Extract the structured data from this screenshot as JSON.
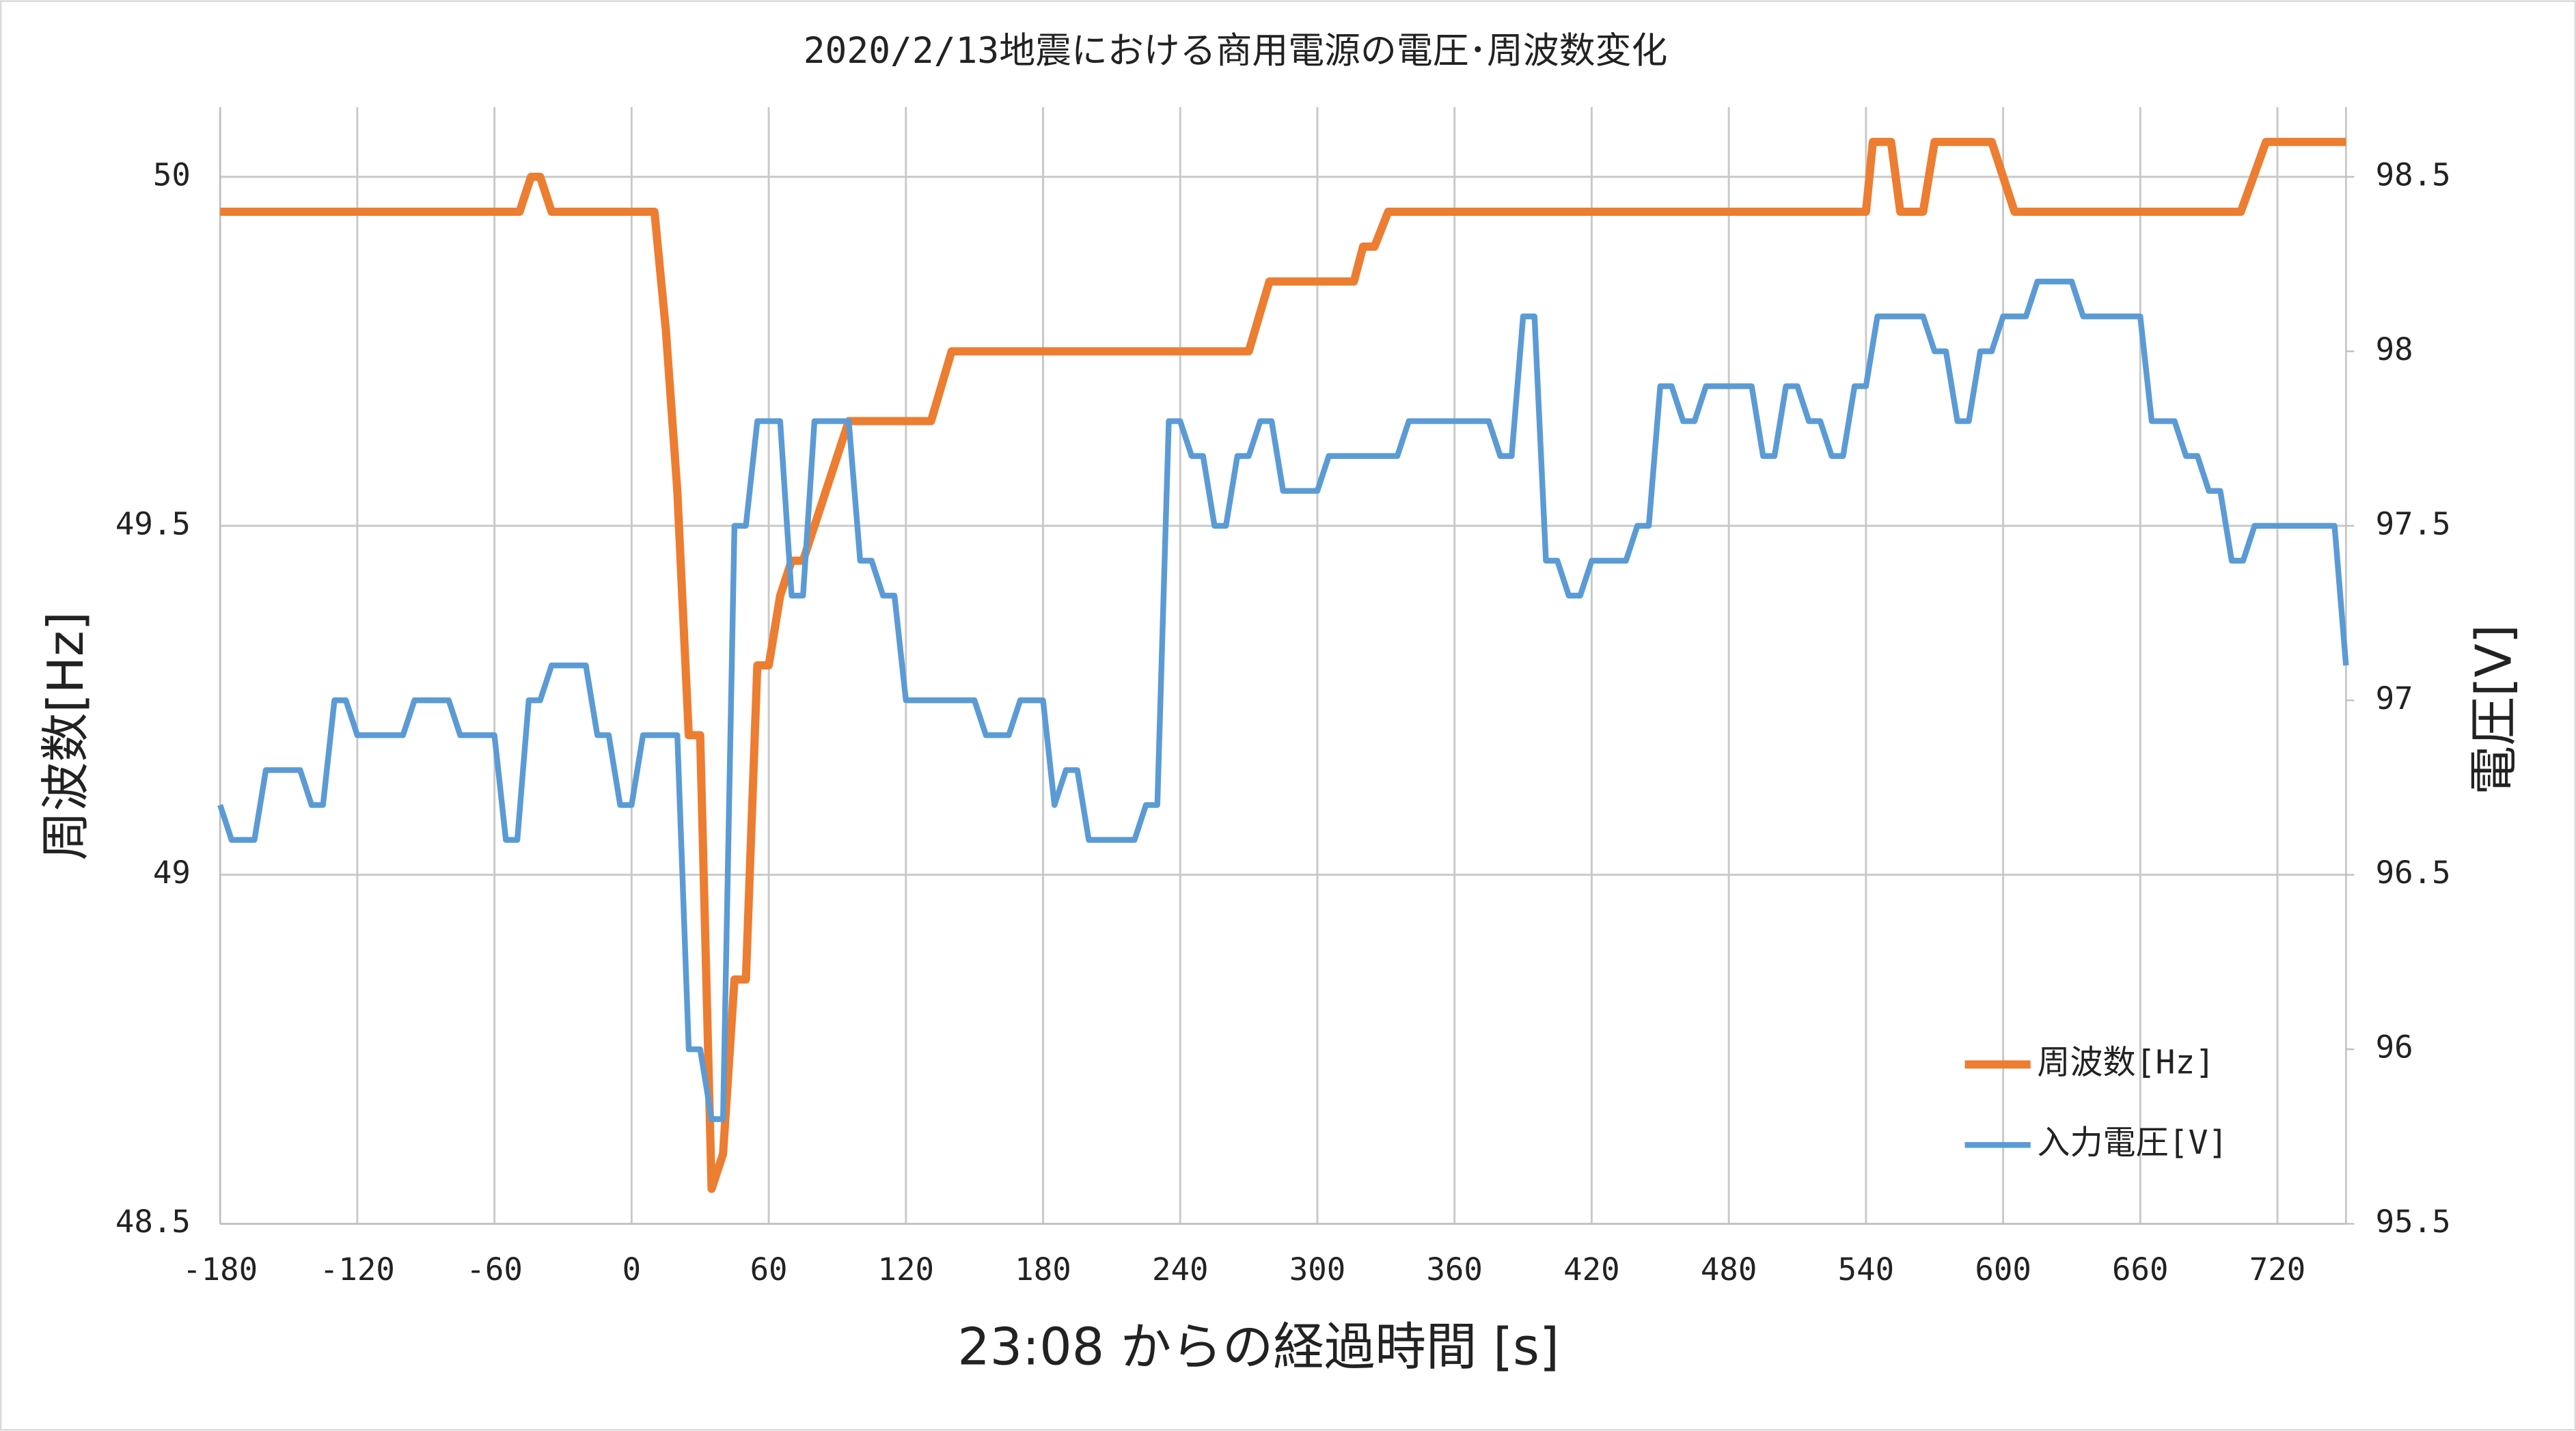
{
  "chart_data": {
    "type": "line",
    "title": "2020/2/13地震における商用電源の電圧･周波数変化",
    "x_label": "23:08 からの経過時間 [s]",
    "y_label": "周波数[Hz]",
    "y2_label": "電圧[V]",
    "xlim": [
      -180,
      750
    ],
    "xticks": [
      -180,
      -120,
      -60,
      0,
      60,
      120,
      180,
      240,
      300,
      360,
      420,
      480,
      540,
      600,
      660,
      720
    ],
    "ylim": [
      48.5,
      50.1
    ],
    "yticks": [
      48.5,
      49,
      49.5,
      50
    ],
    "y2lim": [
      95.5,
      98.7
    ],
    "y2ticks": [
      95.5,
      96,
      96.5,
      97,
      97.5,
      98,
      98.5
    ],
    "grid": true,
    "legend": "lower right",
    "series": [
      {
        "name": "周波数[Hz]",
        "color": "#ed7d31",
        "axis": "y",
        "x": [
          -180,
          -49,
          -44,
          -40,
          -35,
          10,
          15,
          20,
          25,
          30,
          35,
          40,
          45,
          50,
          55,
          60,
          65,
          70,
          75,
          95,
          131,
          140,
          270,
          279,
          316,
          320,
          325,
          331,
          540,
          543,
          551,
          555,
          565,
          570,
          595,
          605,
          704,
          715,
          750
        ],
        "values": [
          49.95,
          49.95,
          50,
          50,
          49.95,
          49.95,
          49.78,
          49.55,
          49.2,
          49.2,
          48.55,
          48.6,
          48.85,
          48.85,
          49.3,
          49.3,
          49.4,
          49.45,
          49.45,
          49.65,
          49.65,
          49.75,
          49.75,
          49.85,
          49.85,
          49.9,
          49.9,
          49.95,
          49.95,
          50.05,
          50.05,
          49.95,
          49.95,
          50.05,
          50.05,
          49.95,
          49.95,
          50.05,
          50.05
        ]
      },
      {
        "name": "入力電圧[V]",
        "color": "#5b9bd5",
        "axis": "y2",
        "x": [
          -180,
          -175,
          -165,
          -160,
          -145,
          -140,
          -135,
          -130,
          -125,
          -120,
          -100,
          -95,
          -80,
          -75,
          -60,
          -55,
          -50,
          -45,
          -40,
          -35,
          -20,
          -15,
          -10,
          -5,
          0,
          5,
          20,
          25,
          30,
          35,
          40,
          45,
          50,
          55,
          65,
          70,
          75,
          80,
          95,
          100,
          105,
          110,
          115,
          120,
          150,
          155,
          165,
          170,
          180,
          185,
          190,
          195,
          200,
          220,
          225,
          230,
          235,
          240,
          245,
          250,
          255,
          260,
          265,
          270,
          275,
          280,
          285,
          300,
          305,
          335,
          340,
          375,
          380,
          385,
          390,
          395,
          400,
          405,
          410,
          415,
          420,
          435,
          440,
          445,
          450,
          455,
          460,
          465,
          470,
          490,
          495,
          500,
          505,
          510,
          515,
          520,
          525,
          530,
          535,
          540,
          545,
          565,
          570,
          575,
          580,
          585,
          590,
          595,
          600,
          610,
          615,
          630,
          635,
          660,
          665,
          675,
          680,
          685,
          690,
          695,
          700,
          705,
          710,
          745,
          750
        ],
        "values": [
          96.7,
          96.6,
          96.6,
          96.8,
          96.8,
          96.7,
          96.7,
          97.0,
          97.0,
          96.9,
          96.9,
          97.0,
          97.0,
          96.9,
          96.9,
          96.6,
          96.6,
          97.0,
          97.0,
          97.1,
          97.1,
          96.9,
          96.9,
          96.7,
          96.7,
          96.9,
          96.9,
          96.0,
          96.0,
          95.8,
          95.8,
          97.5,
          97.5,
          97.8,
          97.8,
          97.3,
          97.3,
          97.8,
          97.8,
          97.4,
          97.4,
          97.3,
          97.3,
          97.0,
          97.0,
          96.9,
          96.9,
          97.0,
          97.0,
          96.7,
          96.8,
          96.8,
          96.6,
          96.6,
          96.7,
          96.7,
          97.8,
          97.8,
          97.7,
          97.7,
          97.5,
          97.5,
          97.7,
          97.7,
          97.8,
          97.8,
          97.6,
          97.6,
          97.7,
          97.7,
          97.8,
          97.8,
          97.7,
          97.7,
          98.1,
          98.1,
          97.4,
          97.4,
          97.3,
          97.3,
          97.4,
          97.4,
          97.5,
          97.5,
          97.9,
          97.9,
          97.8,
          97.8,
          97.9,
          97.9,
          97.7,
          97.7,
          97.9,
          97.9,
          97.8,
          97.8,
          97.7,
          97.7,
          97.9,
          97.9,
          98.1,
          98.1,
          98.0,
          98.0,
          97.8,
          97.8,
          98.0,
          98.0,
          98.1,
          98.1,
          98.2,
          98.2,
          98.1,
          98.1,
          97.8,
          97.8,
          97.7,
          97.7,
          97.6,
          97.6,
          97.4,
          97.4,
          97.5,
          97.5,
          97.1
        ]
      }
    ]
  }
}
